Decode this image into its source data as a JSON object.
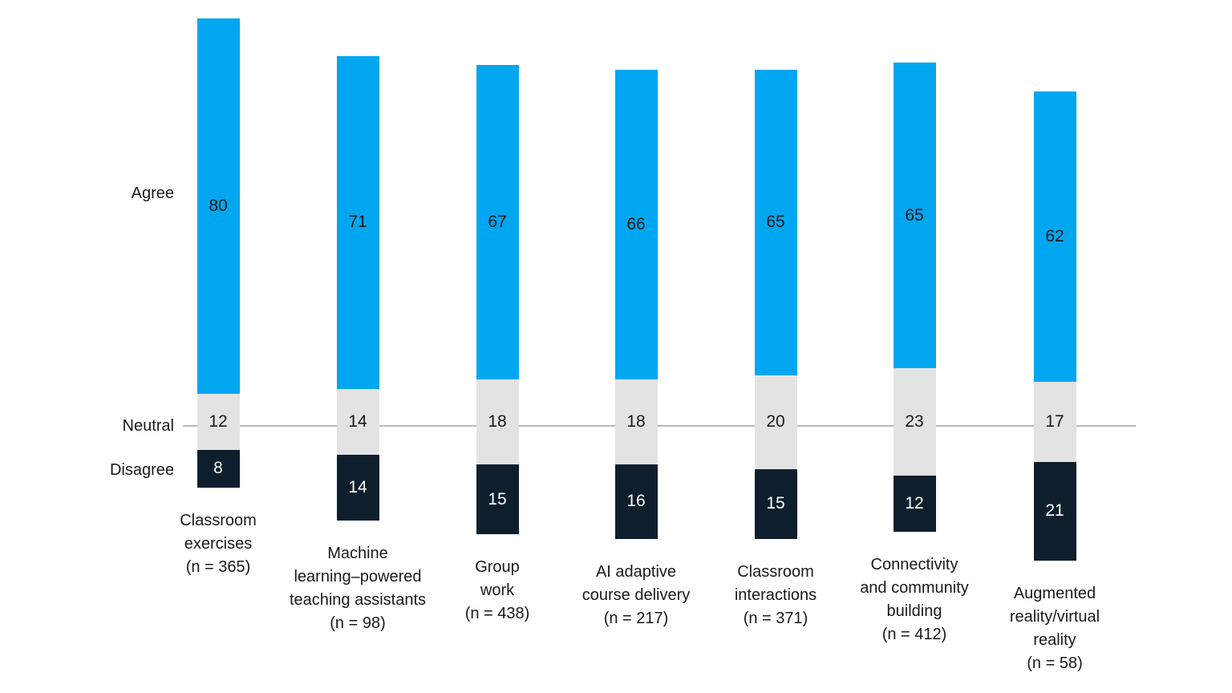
{
  "chart_data": {
    "type": "bar",
    "variant": "diverging-stacked",
    "unit": "percent",
    "orientation": "vertical",
    "grid": false,
    "legend_position": "row-labels-left",
    "row_labels": {
      "agree": "Agree",
      "neutral": "Neutral",
      "disagree": "Disagree"
    },
    "categories": [
      {
        "label": "Classroom exercises",
        "n": 365,
        "lines": [
          "Classroom",
          "exercises",
          "(n = 365)"
        ]
      },
      {
        "label": "Machine learning–powered teaching assistants",
        "n": 98,
        "lines": [
          "Machine",
          "learning–powered",
          "teaching assistants",
          "(n = 98)"
        ]
      },
      {
        "label": "Group work",
        "n": 438,
        "lines": [
          "Group",
          "work",
          "(n = 438)"
        ]
      },
      {
        "label": "AI adaptive course delivery",
        "n": 217,
        "lines": [
          "AI adaptive",
          "course delivery",
          "(n = 217)"
        ]
      },
      {
        "label": "Classroom interactions",
        "n": 371,
        "lines": [
          "Classroom",
          "interactions",
          "(n = 371)"
        ]
      },
      {
        "label": "Connectivity and community building",
        "n": 412,
        "lines": [
          "Connectivity",
          "and community",
          "building",
          "(n = 412)"
        ]
      },
      {
        "label": "Augmented reality/virtual reality",
        "n": 58,
        "lines": [
          "Augmented",
          "reality/virtual",
          "reality",
          "(n = 58)"
        ]
      }
    ],
    "series": [
      {
        "name": "Agree",
        "values": [
          80,
          71,
          67,
          66,
          65,
          65,
          62
        ]
      },
      {
        "name": "Neutral",
        "values": [
          12,
          14,
          18,
          18,
          20,
          23,
          17
        ]
      },
      {
        "name": "Disagree",
        "values": [
          8,
          14,
          15,
          16,
          15,
          12,
          21
        ]
      }
    ],
    "colors": {
      "agree": "#00A6F0",
      "neutral": "#E3E3E3",
      "disagree": "#0F1E2C",
      "axis_line": "#B9B9B9",
      "value_text_dark": "#1A1A1A",
      "value_text_light": "#FFFFFF"
    }
  }
}
